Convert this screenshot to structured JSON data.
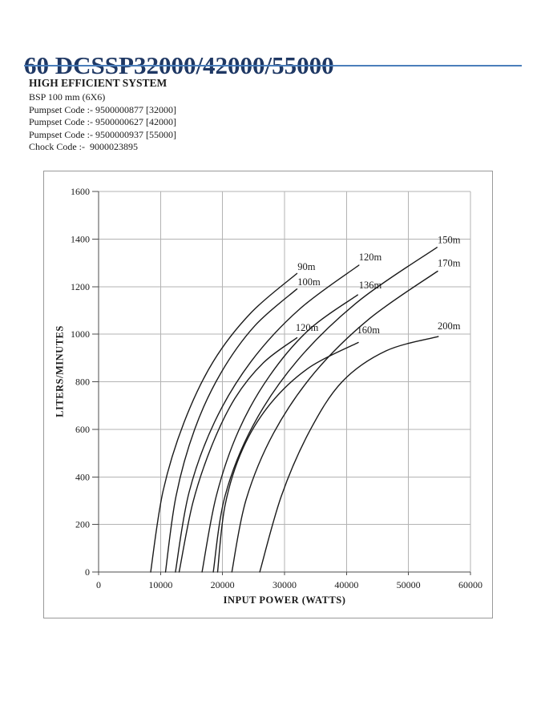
{
  "page": {
    "title": "60 DCSSP32000/42000/55000",
    "title_color": "#1f3864",
    "rule_color": "#4a7ebb"
  },
  "info": {
    "heading": "HIGH EFFICIENT SYSTEM",
    "lines": [
      "BSP 100 mm (6X6)",
      "Pumpset Code :- 9500000877 [32000]",
      "Pumpset Code :- 9500000627 [42000]",
      "Pumpset Code :- 9500000937 [55000]",
      "Chock Code :-  9000023895"
    ]
  },
  "chart_data": {
    "type": "line",
    "title": "",
    "xlabel": "INPUT POWER (WATTS)",
    "ylabel": "LITERS/MINUTES",
    "xlim": [
      0,
      60000
    ],
    "ylim": [
      0,
      1600
    ],
    "x_ticks": [
      0,
      10000,
      20000,
      30000,
      40000,
      50000,
      60000
    ],
    "y_ticks": [
      0,
      200,
      400,
      600,
      800,
      1000,
      1200,
      1400,
      1600
    ],
    "grid": true,
    "legend": "curve-end labels (head in meters)",
    "line_color": "#1a1a1a",
    "grid_color": "#b3b3b3",
    "axis_color": "#4d4d4d",
    "series": [
      {
        "name": "90m",
        "label_xy": [
          32100,
          1300
        ],
        "points": [
          [
            8400,
            0
          ],
          [
            10400,
            340
          ],
          [
            13800,
            630
          ],
          [
            18500,
            885
          ],
          [
            24600,
            1090
          ],
          [
            32000,
            1255
          ]
        ]
      },
      {
        "name": "100m",
        "label_xy": [
          32100,
          1235
        ],
        "points": [
          [
            10800,
            0
          ],
          [
            12500,
            320
          ],
          [
            15500,
            600
          ],
          [
            19700,
            835
          ],
          [
            25200,
            1035
          ],
          [
            32000,
            1190
          ]
        ]
      },
      {
        "name": "120m",
        "label_xy": [
          42000,
          1340
        ],
        "points": [
          [
            12400,
            0
          ],
          [
            14600,
            335
          ],
          [
            18700,
            630
          ],
          [
            24600,
            885
          ],
          [
            32400,
            1105
          ],
          [
            42000,
            1290
          ]
        ]
      },
      {
        "name": "120m",
        "label_xy": [
          31800,
          1044
        ],
        "points": [
          [
            13000,
            0
          ],
          [
            15200,
            290
          ],
          [
            18250,
            530
          ],
          [
            22000,
            730
          ],
          [
            26600,
            880
          ],
          [
            32000,
            985
          ]
        ]
      },
      {
        "name": "136m",
        "label_xy": [
          42000,
          1222
        ],
        "points": [
          [
            16700,
            0
          ],
          [
            19000,
            320
          ],
          [
            22600,
            595
          ],
          [
            27600,
            825
          ],
          [
            34000,
            1020
          ],
          [
            41800,
            1165
          ]
        ]
      },
      {
        "name": "150m",
        "label_xy": [
          54700,
          1412
        ],
        "points": [
          [
            18500,
            0
          ],
          [
            20400,
            320
          ],
          [
            24900,
            615
          ],
          [
            32100,
            890
          ],
          [
            42000,
            1140
          ],
          [
            54600,
            1365
          ]
        ]
      },
      {
        "name": "160m",
        "label_xy": [
          41700,
          1034
        ],
        "points": [
          [
            19200,
            0
          ],
          [
            20400,
            280
          ],
          [
            23300,
            520
          ],
          [
            27800,
            710
          ],
          [
            34000,
            860
          ],
          [
            41900,
            965
          ]
        ]
      },
      {
        "name": "170m",
        "label_xy": [
          54700,
          1315
        ],
        "points": [
          [
            21500,
            0
          ],
          [
            23800,
            305
          ],
          [
            28250,
            585
          ],
          [
            34900,
            840
          ],
          [
            43700,
            1065
          ],
          [
            54700,
            1265
          ]
        ]
      },
      {
        "name": "200m",
        "label_xy": [
          54700,
          1051
        ],
        "points": [
          [
            26000,
            0
          ],
          [
            29500,
            320
          ],
          [
            34000,
            590
          ],
          [
            39300,
            800
          ],
          [
            46400,
            930
          ],
          [
            54800,
            990
          ]
        ]
      }
    ]
  }
}
